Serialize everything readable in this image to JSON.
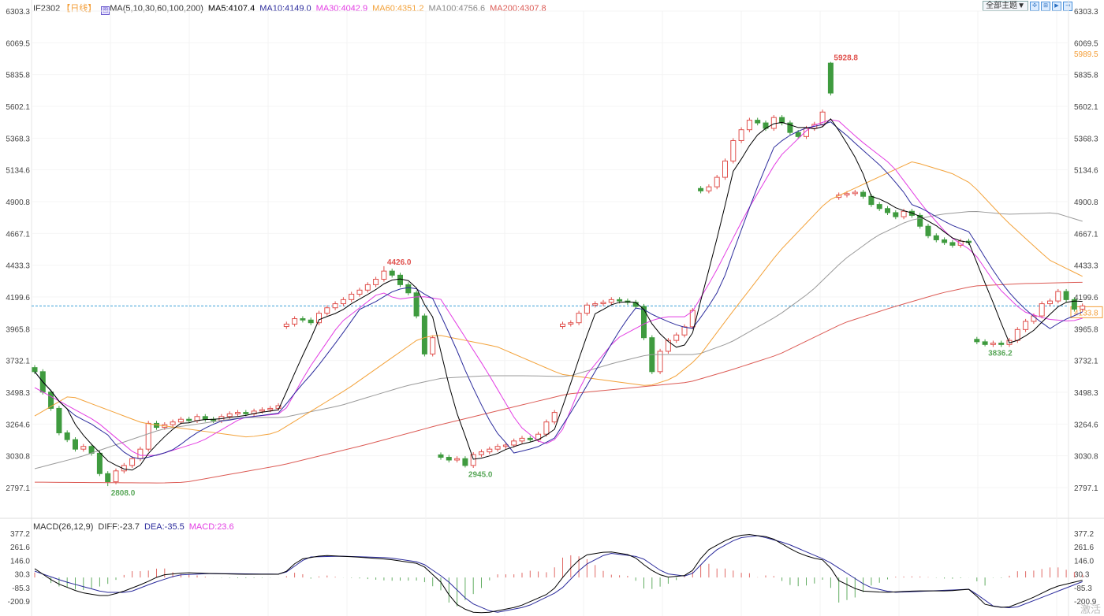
{
  "header": {
    "symbol": "IF2302",
    "period": "【日线】",
    "ma_params": "MA(5,10,30,60,100,200)",
    "ma5": "MA5:4107.4",
    "ma10": "MA10:4149.0",
    "ma30": "MA30:4042.9",
    "ma60": "MA60:4351.2",
    "ma100": "MA100:4756.6",
    "ma200": "MA200:4307.8",
    "theme_select": "全部主题▼",
    "toolbar_icons": [
      "fit-icon",
      "zoom-in-icon",
      "play-icon",
      "goto-end-icon"
    ]
  },
  "macd_legend": {
    "params": "MACD(26,12,9)",
    "diff": "DIFF:-23.7",
    "dea": "DEA:-35.5",
    "macd": "MACD:23.6"
  },
  "watermark": "激活",
  "colors": {
    "up": "#e0504c",
    "down": "#3f9b3f",
    "ma5": "#000000",
    "ma10": "#2b2b9c",
    "ma30": "#e33de3",
    "ma60": "#f3a23a",
    "ma100": "#9a9a9a",
    "ma200": "#dc5b55",
    "diff": "#000000",
    "dea": "#2b2b9c",
    "last_price": "#f39c34",
    "dashed": "#3aa0d8"
  },
  "chart_data": [
    {
      "type": "candlestick",
      "ylim": [
        2797.1,
        6303.3
      ],
      "yticks": [
        "6303.3",
        "6069.5",
        "5835.8",
        "5602.1",
        "5368.3",
        "5134.6",
        "4900.8",
        "4667.1",
        "4433.3",
        "4199.6",
        "3965.8",
        "3732.1",
        "3498.3",
        "3264.6",
        "3030.8",
        "2797.1"
      ],
      "right_extra_label": "5989.5",
      "last_price": "4133.8",
      "close": [
        3650,
        3500,
        3380,
        3200,
        3150,
        3080,
        3100,
        3050,
        2900,
        2840,
        2920,
        2960,
        3010,
        3080,
        3270,
        3240,
        3260,
        3280,
        3300,
        3290,
        3320,
        3300,
        3290,
        3320,
        3340,
        3350,
        3340,
        3360,
        3370,
        3380,
        3400,
        4000,
        4040,
        4030,
        4010,
        4080,
        4120,
        4150,
        4180,
        4220,
        4250,
        4290,
        4330,
        4390,
        4360,
        4290,
        4230,
        4060,
        3780,
        3900,
        3020,
        3000,
        3010,
        2960,
        3040,
        3060,
        3080,
        3100,
        3110,
        3140,
        3160,
        3150,
        3190,
        3280,
        3350,
        4000,
        4010,
        4080,
        4140,
        4150,
        4160,
        4180,
        4170,
        4160,
        4130,
        3900,
        3650,
        3800,
        3880,
        3920,
        3980,
        4100,
        4980,
        5010,
        5080,
        5200,
        5350,
        5430,
        5500,
        5480,
        5440,
        5520,
        5480,
        5410,
        5380,
        5440,
        5470,
        5560,
        5700,
        4950,
        4960,
        4970,
        4940,
        4880,
        4850,
        4820,
        4790,
        4830,
        4800,
        4720,
        4650,
        4620,
        4600,
        4580,
        4610,
        4600,
        3870,
        3850,
        3860,
        3850,
        3880,
        3960,
        4020,
        4060,
        4150,
        4170,
        4240,
        4180,
        4110,
        4133.8
      ],
      "extremes": [
        {
          "index": 98,
          "value": 5928.8,
          "label": "5928.8",
          "kind": "high"
        },
        {
          "index": 43,
          "value": 4426.0,
          "label": "4426.0",
          "kind": "high"
        },
        {
          "index": 9,
          "value": 2808.0,
          "label": "2808.0",
          "kind": "low"
        },
        {
          "index": 53,
          "value": 2945.0,
          "label": "2945.0",
          "kind": "low"
        },
        {
          "index": 117,
          "value": 3836.2,
          "label": "3836.2",
          "kind": "low"
        }
      ],
      "ma30": [
        [
          0,
          3533
        ],
        [
          7.6,
          3284
        ],
        [
          12.6,
          3034
        ],
        [
          15,
          3034
        ],
        [
          20.6,
          3139
        ],
        [
          25.6,
          3313
        ],
        [
          30.6,
          3342
        ],
        [
          33.6,
          3660
        ],
        [
          37.6,
          4008
        ],
        [
          42.6,
          4240
        ],
        [
          44.6,
          4182
        ],
        [
          47.6,
          4205
        ],
        [
          50,
          4182
        ],
        [
          55.6,
          3660
        ],
        [
          59.6,
          3255
        ],
        [
          62.6,
          3110
        ],
        [
          64.6,
          3168
        ],
        [
          67.6,
          3602
        ],
        [
          71.6,
          3892
        ],
        [
          75.6,
          4020
        ],
        [
          77.6,
          4054
        ],
        [
          80.6,
          4054
        ],
        [
          83.6,
          4356
        ],
        [
          87.6,
          4819
        ],
        [
          91.6,
          5225
        ],
        [
          95.6,
          5457
        ],
        [
          98.6,
          5515
        ],
        [
          101.6,
          5353
        ],
        [
          105.6,
          5167
        ],
        [
          109.6,
          4848
        ],
        [
          112.6,
          4646
        ],
        [
          115.6,
          4530
        ],
        [
          118.6,
          4269
        ],
        [
          121.6,
          4095
        ],
        [
          124.6,
          4037
        ],
        [
          127.6,
          4020
        ],
        [
          129,
          4042.9
        ]
      ],
      "ma60": [
        [
          0,
          3324
        ],
        [
          4.3,
          3475
        ],
        [
          13.3,
          3272
        ],
        [
          26.3,
          3168
        ],
        [
          29.6,
          3197
        ],
        [
          38.6,
          3527
        ],
        [
          47.3,
          3892
        ],
        [
          49.6,
          3921
        ],
        [
          56.9,
          3834
        ],
        [
          64.8,
          3631
        ],
        [
          75.6,
          3544
        ],
        [
          78.6,
          3602
        ],
        [
          81.6,
          3747
        ],
        [
          85.6,
          4066
        ],
        [
          91.6,
          4530
        ],
        [
          97.6,
          4906
        ],
        [
          104.9,
          5109
        ],
        [
          108.1,
          5196
        ],
        [
          112.9,
          5109
        ],
        [
          115.3,
          5034
        ],
        [
          119.6,
          4761
        ],
        [
          124.9,
          4472
        ],
        [
          129,
          4351.2
        ]
      ],
      "ma100": [
        [
          0,
          2936
        ],
        [
          5.6,
          3023
        ],
        [
          15.6,
          3226
        ],
        [
          25.6,
          3313
        ],
        [
          30.6,
          3313
        ],
        [
          37.6,
          3400
        ],
        [
          45.6,
          3544
        ],
        [
          50.1,
          3602
        ],
        [
          55.6,
          3620
        ],
        [
          60.6,
          3620
        ],
        [
          65.6,
          3614
        ],
        [
          71.6,
          3718
        ],
        [
          75.6,
          3776
        ],
        [
          81.6,
          3776
        ],
        [
          85.6,
          3863
        ],
        [
          91.6,
          4066
        ],
        [
          95.6,
          4240
        ],
        [
          99.6,
          4472
        ],
        [
          103.6,
          4646
        ],
        [
          107.6,
          4761
        ],
        [
          111.6,
          4808
        ],
        [
          115.6,
          4831
        ],
        [
          119.6,
          4808
        ],
        [
          125.6,
          4819
        ],
        [
          129,
          4756.6
        ]
      ],
      "ma200": [
        [
          0,
          2837
        ],
        [
          15.6,
          2831
        ],
        [
          18.6,
          2837
        ],
        [
          30.6,
          2965
        ],
        [
          40.6,
          3110
        ],
        [
          49.6,
          3255
        ],
        [
          55.6,
          3342
        ],
        [
          65.6,
          3486
        ],
        [
          75.6,
          3544
        ],
        [
          80.6,
          3573
        ],
        [
          85.6,
          3660
        ],
        [
          91.6,
          3776
        ],
        [
          95.6,
          3892
        ],
        [
          99.6,
          4008
        ],
        [
          105.6,
          4124
        ],
        [
          111.6,
          4228
        ],
        [
          115.6,
          4280
        ],
        [
          121.6,
          4298
        ],
        [
          129,
          4307.8
        ]
      ]
    },
    {
      "type": "macd",
      "ylim": [
        -300,
        377.2
      ],
      "yticks": [
        "377.2",
        "261.6",
        "146.0",
        "30.3",
        "-85.3",
        "-200.9"
      ],
      "diff": [
        [
          0,
          75
        ],
        [
          2.6,
          -46
        ],
        [
          5.6,
          -127
        ],
        [
          8.6,
          -161
        ],
        [
          10.6,
          -127
        ],
        [
          13.6,
          -46
        ],
        [
          15.6,
          21
        ],
        [
          18.6,
          41
        ],
        [
          21.6,
          34
        ],
        [
          25.6,
          28
        ],
        [
          30.6,
          28
        ],
        [
          32.6,
          155
        ],
        [
          35.6,
          189
        ],
        [
          39.6,
          175
        ],
        [
          43.6,
          155
        ],
        [
          47.6,
          115
        ],
        [
          50.1,
          -46
        ],
        [
          51.6,
          -214
        ],
        [
          53.6,
          -295
        ],
        [
          55.6,
          -302
        ],
        [
          59.6,
          -248
        ],
        [
          63.6,
          -127
        ],
        [
          65.6,
          54
        ],
        [
          67.6,
          189
        ],
        [
          70.6,
          222
        ],
        [
          73.6,
          189
        ],
        [
          75.6,
          75
        ],
        [
          77.6,
          1
        ],
        [
          80.6,
          21
        ],
        [
          82.6,
          222
        ],
        [
          85.6,
          337
        ],
        [
          87.6,
          370
        ],
        [
          90.6,
          343
        ],
        [
          93.6,
          222
        ],
        [
          95.6,
          169
        ],
        [
          97.6,
          142
        ],
        [
          98.6,
          -13
        ],
        [
          101.6,
          -114
        ],
        [
          104.6,
          -127
        ],
        [
          108.6,
          -114
        ],
        [
          112.6,
          -114
        ],
        [
          115.1,
          -100
        ],
        [
          117.1,
          -235
        ],
        [
          119.6,
          -261
        ],
        [
          122.6,
          -181
        ],
        [
          125.6,
          -80
        ],
        [
          127.6,
          -46
        ],
        [
          129,
          -23.7
        ]
      ],
      "dea": [
        [
          0,
          54
        ],
        [
          3.6,
          -33
        ],
        [
          8.6,
          -127
        ],
        [
          11.6,
          -127
        ],
        [
          14.6,
          -46
        ],
        [
          17.6,
          21
        ],
        [
          21.6,
          34
        ],
        [
          30.6,
          28
        ],
        [
          33.6,
          175
        ],
        [
          37.6,
          182
        ],
        [
          43.6,
          169
        ],
        [
          47.6,
          128
        ],
        [
          50.6,
          -13
        ],
        [
          53.6,
          -214
        ],
        [
          56.6,
          -302
        ],
        [
          60.6,
          -248
        ],
        [
          64.6,
          -114
        ],
        [
          67.6,
          101
        ],
        [
          70.6,
          209
        ],
        [
          74.6,
          175
        ],
        [
          77.6,
          34
        ],
        [
          80.6,
          7
        ],
        [
          83.6,
          222
        ],
        [
          86.6,
          337
        ],
        [
          89.1,
          357
        ],
        [
          92.6,
          290
        ],
        [
          97.6,
          142
        ],
        [
          99.6,
          54
        ],
        [
          102.6,
          -80
        ],
        [
          105.6,
          -127
        ],
        [
          110.6,
          -114
        ],
        [
          115.1,
          -100
        ],
        [
          118.1,
          -248
        ],
        [
          120.6,
          -261
        ],
        [
          123.6,
          -181
        ],
        [
          126.6,
          -100
        ],
        [
          129,
          -35.5
        ]
      ]
    }
  ]
}
